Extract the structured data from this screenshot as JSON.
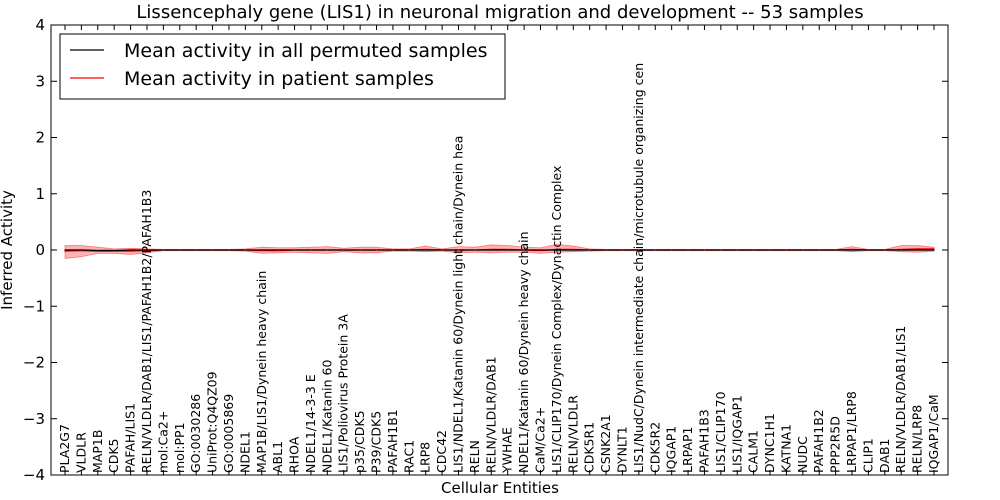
{
  "chart_data": {
    "type": "line",
    "title": "Lissencephaly gene (LIS1) in neuronal migration and development -- 53 samples",
    "xlabel": "Cellular Entities",
    "ylabel": "Inferred Activity",
    "ylim": [
      -4,
      4
    ],
    "yticks": [
      "−4",
      "−3",
      "−2",
      "−1",
      "0",
      "1",
      "2",
      "3",
      "4"
    ],
    "legend_position": "top-left",
    "colors": {
      "permuted": "#000000",
      "patient": "#ff0000",
      "band": "#ff0000"
    },
    "categories": [
      "PLA2G7",
      "VLDLR",
      "MAP1B",
      "CDK5",
      "PAFAH/LIS1",
      "RELN/VLDLR/DAB1/LIS1/PAFAH1B2/PAFAH1B3",
      "mol:Ca2+",
      "mol:PP1",
      "GO:0030286",
      "UniProt:Q4QZ09",
      "GO:0005869",
      "NDEL1",
      "MAP1B/LIS1/Dynein heavy chain",
      "ABL1",
      "RHOA",
      "NDEL1/14-3-3 E",
      "NDEL1/Katanin 60",
      "LIS1/Poliovirus Protein 3A",
      "p35/CDK5",
      "P39/CDK5",
      "PAFAH1B1",
      "RAC1",
      "LRP8",
      "CDC42",
      "LIS1/NDEL1/Katanin 60/Dynein light chain/Dynein hea",
      "RELN",
      "RELN/VLDLR/DAB1",
      "YWHAE",
      "NDEL1/Katanin 60/Dynein heavy chain",
      "CaM/Ca2+",
      "LIS1/CLIP170/Dynein Complex/Dynactin Complex",
      "RELN/VLDLR",
      "CDK5R1",
      "CSNK2A1",
      "DYNLT1",
      "LIS1/NudC/Dynein intermediate chain/microtubule organizing cen",
      "CDK5R2",
      "IQGAP1",
      "LRPAP1",
      "PAFAH1B3",
      "LIS1/CLIP170",
      "LIS1/IQGAP1",
      "CALM1",
      "DYNC1H1",
      "KATNA1",
      "NUDC",
      "PAFAH1B2",
      "PPP2R5D",
      "LRPAP1/LRP8",
      "CLIP1",
      "DAB1",
      "RELN/VLDLR/DAB1/LIS1",
      "RELN/LRP8",
      "IQGAP1/CaM"
    ],
    "series": [
      {
        "name": "Mean activity in all permuted samples",
        "color": "#000000",
        "values": [
          0.0,
          0.0,
          -0.01,
          -0.01,
          0.0,
          0.0,
          0.0,
          0.0,
          0.0,
          0.0,
          0.0,
          0.0,
          0.0,
          0.0,
          0.0,
          0.0,
          0.0,
          0.0,
          0.0,
          0.0,
          0.0,
          0.0,
          0.0,
          0.0,
          0.0,
          0.0,
          0.0,
          0.0,
          0.0,
          0.0,
          0.0,
          0.0,
          0.0,
          0.0,
          0.0,
          0.0,
          0.0,
          0.0,
          0.0,
          0.0,
          0.0,
          0.0,
          0.0,
          0.0,
          0.0,
          0.0,
          0.0,
          0.0,
          0.0,
          0.0,
          0.0,
          0.0,
          0.0,
          0.0
        ]
      },
      {
        "name": "Mean activity in patient samples",
        "color": "#ff0000",
        "values": [
          -0.02,
          -0.01,
          -0.02,
          -0.02,
          -0.02,
          -0.01,
          0.0,
          0.0,
          0.0,
          0.0,
          0.0,
          0.0,
          -0.01,
          -0.01,
          0.0,
          0.0,
          0.0,
          0.0,
          0.0,
          0.0,
          0.0,
          0.0,
          0.01,
          0.0,
          0.0,
          0.0,
          0.01,
          0.01,
          0.0,
          -0.01,
          0.01,
          0.01,
          0.0,
          0.0,
          0.0,
          0.0,
          0.0,
          0.0,
          0.0,
          0.0,
          0.0,
          0.0,
          0.0,
          0.0,
          0.0,
          0.0,
          0.0,
          0.0,
          0.01,
          0.0,
          0.0,
          0.01,
          0.02,
          0.02
        ],
        "band_low": [
          -0.15,
          -0.12,
          -0.06,
          -0.06,
          -0.08,
          -0.05,
          -0.01,
          -0.01,
          -0.01,
          -0.01,
          -0.01,
          -0.02,
          -0.06,
          -0.05,
          -0.04,
          -0.05,
          -0.06,
          -0.03,
          -0.05,
          -0.05,
          -0.02,
          -0.02,
          -0.03,
          -0.02,
          -0.05,
          -0.04,
          -0.05,
          -0.04,
          -0.04,
          -0.06,
          -0.04,
          -0.03,
          -0.02,
          -0.01,
          -0.01,
          -0.01,
          -0.01,
          -0.01,
          -0.01,
          -0.01,
          -0.01,
          -0.01,
          -0.01,
          -0.01,
          -0.01,
          -0.01,
          -0.01,
          -0.01,
          -0.03,
          -0.01,
          -0.01,
          -0.03,
          -0.04,
          -0.02
        ],
        "band_high": [
          0.08,
          0.08,
          0.05,
          0.02,
          0.03,
          0.02,
          0.01,
          0.01,
          0.01,
          0.01,
          0.01,
          0.02,
          0.05,
          0.04,
          0.04,
          0.05,
          0.06,
          0.03,
          0.05,
          0.05,
          0.02,
          0.02,
          0.07,
          0.02,
          0.06,
          0.05,
          0.09,
          0.08,
          0.05,
          0.04,
          0.1,
          0.07,
          0.02,
          0.01,
          0.01,
          0.01,
          0.01,
          0.01,
          0.01,
          0.01,
          0.01,
          0.01,
          0.01,
          0.01,
          0.01,
          0.01,
          0.01,
          0.01,
          0.06,
          0.01,
          0.01,
          0.08,
          0.08,
          0.05
        ]
      }
    ]
  }
}
